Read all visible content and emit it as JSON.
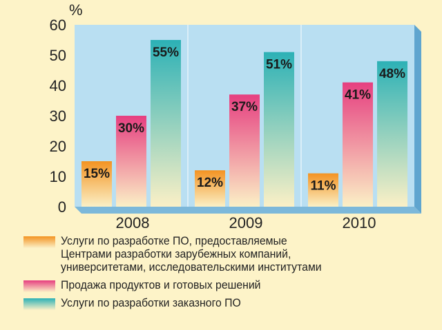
{
  "unit": "%",
  "colors": {
    "background": "#fdf3c8",
    "plot_face": "#b9dff2",
    "plot_side": "#5fa5cf",
    "series_orange": "#f39322",
    "series_pink": "#e63f80",
    "series_teal": "#2cb1b6"
  },
  "chart_data": {
    "type": "bar",
    "categories": [
      "2008",
      "2009",
      "2010"
    ],
    "series": [
      {
        "name": "Услуги по разработке ПО, предоставляемые\nЦентрами разработки зарубежных компаний,\nуниверситетами, исследовательскими институтами",
        "values": [
          15,
          12,
          11
        ],
        "labels": [
          "15%",
          "12%",
          "11%"
        ],
        "color": "#f39322"
      },
      {
        "name": "Продажа продуктов и готовых решений",
        "values": [
          30,
          37,
          41
        ],
        "labels": [
          "30%",
          "37%",
          "41%"
        ],
        "color": "#e63f80"
      },
      {
        "name": "Услуги по разработки заказного ПО",
        "values": [
          55,
          51,
          48
        ],
        "labels": [
          "55%",
          "51%",
          "48%"
        ],
        "color": "#2cb1b6"
      }
    ],
    "y_ticks": [
      "0",
      "10",
      "20",
      "30",
      "40",
      "50",
      "60"
    ],
    "ylim": [
      0,
      60
    ],
    "grid": false,
    "legend_position": "bottom"
  }
}
